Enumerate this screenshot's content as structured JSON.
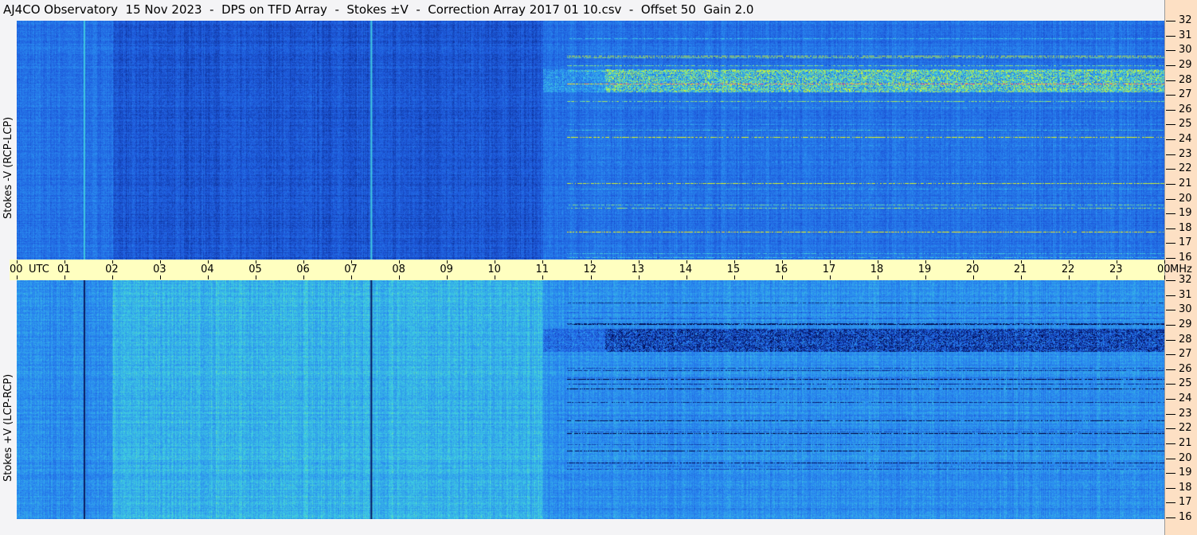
{
  "chart_data": [
    {
      "type": "heatmap",
      "title": "AJ4CO Observatory  15 Nov 2023  -  DPS on TFD Array  -  Stokes ±V  -  Correction Array 2017 01 10.csv  -  Offset 50  Gain 2.0",
      "ylabel": "Stokes -V (RCP-LCP)",
      "yunit": "MHz",
      "ylim": [
        16,
        32
      ],
      "xlim": [
        0,
        24
      ],
      "xlabel": "UTC",
      "colormap": [
        "#000033",
        "#0a2a8c",
        "#1e5adc",
        "#2a8cf0",
        "#40d0e0",
        "#c0f040",
        "#ffff00",
        "#ff4080"
      ]
    },
    {
      "type": "heatmap",
      "ylabel": "Stokes +V (LCP-RCP)",
      "yunit": "MHz",
      "ylim": [
        16,
        32
      ],
      "xlim": [
        0,
        24
      ],
      "xlabel": "UTC"
    }
  ],
  "x_ticks": [
    "00",
    "01",
    "02",
    "03",
    "04",
    "05",
    "06",
    "07",
    "08",
    "09",
    "10",
    "11",
    "12",
    "13",
    "14",
    "15",
    "16",
    "17",
    "18",
    "19",
    "20",
    "21",
    "22",
    "23",
    "00"
  ],
  "x_unit": "UTC",
  "y_ticks": [
    "32",
    "31",
    "30",
    "29",
    "28",
    "27",
    "26",
    "25",
    "24",
    "23",
    "22",
    "21",
    "20",
    "19",
    "18",
    "17",
    "16"
  ],
  "y_unit": "MHz"
}
